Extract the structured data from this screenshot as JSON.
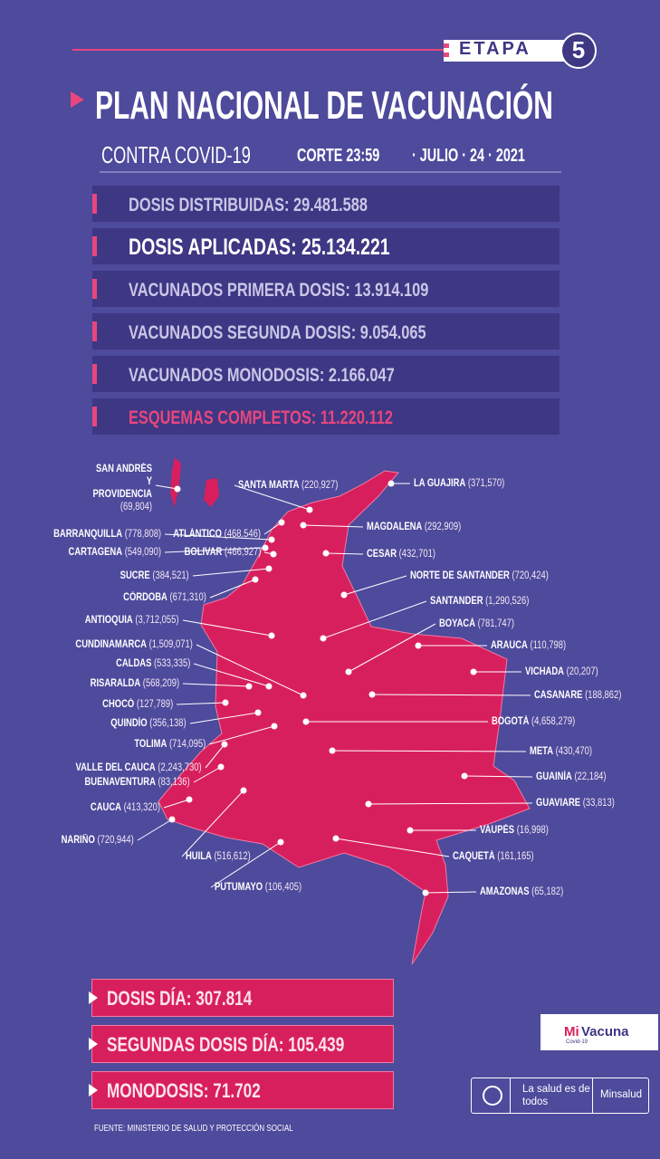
{
  "header": {
    "etapa": "ETAPA",
    "etapa_number": "5",
    "title": "PLAN NACIONAL DE VACUNACIÓN",
    "subtitle": "CONTRA COVID-19",
    "corte": "CORTE 23:59",
    "date": "· JULIO · 24 · 2021"
  },
  "stats": [
    {
      "label": "DOSIS DISTRIBUIDAS:",
      "value": "29.481.588"
    },
    {
      "label": "DOSIS APLICADAS:",
      "value": "25.134.221"
    },
    {
      "label": "VACUNADOS PRIMERA DOSIS:",
      "value": "13.914.109"
    },
    {
      "label": "VACUNADOS SEGUNDA DOSIS:",
      "value": "9.054.065"
    },
    {
      "label": "VACUNADOS MONODOSIS:",
      "value": "2.166.047"
    },
    {
      "label": "ESQUEMAS COMPLETOS:",
      "value": "11.220.112"
    }
  ],
  "departments": [
    {
      "name": "SAN ANDRÉS Y PROVIDENCIA",
      "value": "(69,804)"
    },
    {
      "name": "SANTA MARTA",
      "value": "(220,927)"
    },
    {
      "name": "LA GUAJIRA",
      "value": "(371,570)"
    },
    {
      "name": "BARRANQUILLA",
      "value": "(778,808)"
    },
    {
      "name": "ATLÁNTICO",
      "value": "(468,546)"
    },
    {
      "name": "MAGDALENA",
      "value": "(292,909)"
    },
    {
      "name": "CARTAGENA",
      "value": "(549,090)"
    },
    {
      "name": "BOLIVAR",
      "value": "(466,927)"
    },
    {
      "name": "CESAR",
      "value": "(432,701)"
    },
    {
      "name": "SUCRE",
      "value": "(384,521)"
    },
    {
      "name": "NORTE DE SANTANDER",
      "value": "(720,424)"
    },
    {
      "name": "CÓRDOBA",
      "value": "(671,310)"
    },
    {
      "name": "SANTANDER",
      "value": "(1,290,526)"
    },
    {
      "name": "ANTIOQUIA",
      "value": "(3,712,055)"
    },
    {
      "name": "BOYACÁ",
      "value": "(781,747)"
    },
    {
      "name": "CUNDINAMARCA",
      "value": "(1,509,071)"
    },
    {
      "name": "ARAUCA",
      "value": "(110,798)"
    },
    {
      "name": "CALDAS",
      "value": "(533,335)"
    },
    {
      "name": "VICHADA",
      "value": "(20,207)"
    },
    {
      "name": "RISARALDA",
      "value": "(568,209)"
    },
    {
      "name": "CASANARE",
      "value": "(188,862)"
    },
    {
      "name": "CHOCÓ",
      "value": "(127,789)"
    },
    {
      "name": "BOGOTÁ",
      "value": "(4,658,279)"
    },
    {
      "name": "QUINDÍO",
      "value": "(356,138)"
    },
    {
      "name": "TOLIMA",
      "value": "(714,095)"
    },
    {
      "name": "META",
      "value": "(430,470)"
    },
    {
      "name": "VALLE DEL CAUCA",
      "value": "(2,243,730)"
    },
    {
      "name": "BUENAVENTURA",
      "value": "(83,136)"
    },
    {
      "name": "GUAINÍA",
      "value": "(22,184)"
    },
    {
      "name": "CAUCA",
      "value": "(413,320)"
    },
    {
      "name": "GUAVIARE",
      "value": "(33,813)"
    },
    {
      "name": "HUILA",
      "value": "(516,612)"
    },
    {
      "name": "VAUPÉS",
      "value": "(16,998)"
    },
    {
      "name": "NARIÑO",
      "value": "(720,944)"
    },
    {
      "name": "CAQUETÁ",
      "value": "(161,165)"
    },
    {
      "name": "PUTUMAYO",
      "value": "(106,405)"
    },
    {
      "name": "AMAZONAS",
      "value": "(65,182)"
    }
  ],
  "daily": [
    {
      "label": "DOSIS DÍA:",
      "value": "307.814"
    },
    {
      "label": "SEGUNDAS DOSIS DÍA:",
      "value": "105.439"
    },
    {
      "label": "MONODOSIS:",
      "value": "71.702"
    }
  ],
  "footer": {
    "source": "FUENTE: MINISTERIO DE SALUD Y PROTECCIÓN SOCIAL",
    "mivacuna_mi": "Mi",
    "mivacuna_vacuna": "Vacuna",
    "mivacuna_sub": "Covid-19",
    "slogan": "La salud es de todos",
    "ministry": "Minsalud"
  }
}
